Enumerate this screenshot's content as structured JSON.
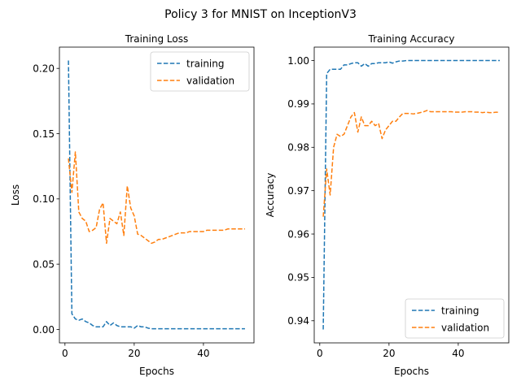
{
  "figure": {
    "title": "Policy 3 for MNIST on InceptionV3"
  },
  "colors": {
    "training": "#1f77b4",
    "validation": "#ff7f0e"
  },
  "chart_data": [
    {
      "type": "line",
      "title": "Training Loss",
      "xlabel": "Epochs",
      "ylabel": "Loss",
      "xlim": [
        -1.6,
        54.6
      ],
      "ylim": [
        -0.0103,
        0.2163
      ],
      "xticks": [
        0,
        20,
        40
      ],
      "yticks": [
        0.0,
        0.05,
        0.1,
        0.15,
        0.2
      ],
      "ytick_decimals": 2,
      "grid": false,
      "legend_position": "upper right",
      "series": [
        {
          "name": "training",
          "color": "#1f77b4",
          "x": [
            1,
            2,
            3,
            4,
            5,
            6,
            7,
            8,
            9,
            10,
            11,
            12,
            13,
            14,
            15,
            16,
            17,
            18,
            19,
            20,
            21,
            22,
            23,
            24,
            25,
            26,
            27,
            28,
            29,
            30,
            31,
            32,
            33,
            34,
            35,
            36,
            37,
            38,
            39,
            40,
            41,
            42,
            43,
            44,
            45,
            46,
            47,
            48,
            49,
            50,
            51,
            52
          ],
          "y": [
            0.206,
            0.012,
            0.008,
            0.007,
            0.008,
            0.006,
            0.005,
            0.003,
            0.002,
            0.002,
            0.002,
            0.006,
            0.003,
            0.005,
            0.003,
            0.002,
            0.002,
            0.002,
            0.002,
            0.001,
            0.003,
            0.002,
            0.002,
            0.001,
            0.0005,
            0.0005,
            0.0005,
            0.0005,
            0.0005,
            0.0005,
            0.0005,
            0.0005,
            0.0005,
            0.0005,
            0.0005,
            0.0005,
            0.0005,
            0.0005,
            0.0005,
            0.0005,
            0.0005,
            0.0005,
            0.0005,
            0.0005,
            0.0005,
            0.0005,
            0.0005,
            0.0005,
            0.0005,
            0.0005,
            0.0005,
            0.0005
          ]
        },
        {
          "name": "validation",
          "color": "#ff7f0e",
          "x": [
            1,
            2,
            3,
            4,
            5,
            6,
            7,
            8,
            9,
            10,
            11,
            12,
            13,
            14,
            15,
            16,
            17,
            18,
            19,
            20,
            21,
            22,
            23,
            24,
            25,
            26,
            27,
            28,
            29,
            30,
            31,
            32,
            33,
            34,
            35,
            36,
            37,
            38,
            39,
            40,
            41,
            42,
            43,
            44,
            45,
            46,
            47,
            48,
            49,
            50,
            51,
            52
          ],
          "y": [
            0.131,
            0.105,
            0.136,
            0.09,
            0.085,
            0.083,
            0.075,
            0.076,
            0.078,
            0.092,
            0.097,
            0.066,
            0.085,
            0.083,
            0.081,
            0.09,
            0.072,
            0.11,
            0.093,
            0.087,
            0.073,
            0.072,
            0.07,
            0.068,
            0.066,
            0.067,
            0.069,
            0.069,
            0.07,
            0.071,
            0.072,
            0.073,
            0.074,
            0.074,
            0.074,
            0.075,
            0.075,
            0.075,
            0.075,
            0.075,
            0.076,
            0.076,
            0.076,
            0.076,
            0.076,
            0.076,
            0.077,
            0.077,
            0.077,
            0.077,
            0.077,
            0.077
          ]
        }
      ]
    },
    {
      "type": "line",
      "title": "Training Accuracy",
      "xlabel": "Epochs",
      "ylabel": "Accuracy",
      "xlim": [
        -1.6,
        54.6
      ],
      "ylim": [
        0.9349,
        1.0031
      ],
      "xticks": [
        0,
        20,
        40
      ],
      "yticks": [
        0.94,
        0.95,
        0.96,
        0.97,
        0.98,
        0.99,
        1.0
      ],
      "ytick_decimals": 2,
      "grid": false,
      "legend_position": "lower right",
      "series": [
        {
          "name": "training",
          "color": "#1f77b4",
          "x": [
            1,
            2,
            3,
            4,
            5,
            6,
            7,
            8,
            9,
            10,
            11,
            12,
            13,
            14,
            15,
            16,
            17,
            18,
            19,
            20,
            21,
            22,
            23,
            24,
            25,
            26,
            27,
            28,
            29,
            30,
            31,
            32,
            33,
            34,
            35,
            36,
            37,
            38,
            39,
            40,
            41,
            42,
            43,
            44,
            45,
            46,
            47,
            48,
            49,
            50,
            51,
            52
          ],
          "y": [
            0.938,
            0.997,
            0.998,
            0.998,
            0.998,
            0.998,
            0.999,
            0.999,
            0.9993,
            0.9995,
            0.9995,
            0.9987,
            0.9993,
            0.9987,
            0.9993,
            0.9993,
            0.9995,
            0.9995,
            0.9995,
            0.9997,
            0.9994,
            0.9997,
            0.9999,
            0.9999,
            1.0,
            1.0,
            1.0,
            1.0,
            1.0,
            1.0,
            1.0,
            1.0,
            1.0,
            1.0,
            1.0,
            1.0,
            1.0,
            1.0,
            1.0,
            1.0,
            1.0,
            1.0,
            1.0,
            1.0,
            1.0,
            1.0,
            1.0,
            1.0,
            1.0,
            1.0,
            1.0,
            1.0
          ]
        },
        {
          "name": "validation",
          "color": "#ff7f0e",
          "x": [
            1,
            2,
            3,
            4,
            5,
            6,
            7,
            8,
            9,
            10,
            11,
            12,
            13,
            14,
            15,
            16,
            17,
            18,
            19,
            20,
            21,
            22,
            23,
            24,
            25,
            26,
            27,
            28,
            29,
            30,
            31,
            32,
            33,
            34,
            35,
            36,
            37,
            38,
            39,
            40,
            41,
            42,
            43,
            44,
            45,
            46,
            47,
            48,
            49,
            50,
            51,
            52
          ],
          "y": [
            0.964,
            0.975,
            0.969,
            0.98,
            0.983,
            0.9825,
            0.983,
            0.985,
            0.987,
            0.988,
            0.9835,
            0.987,
            0.985,
            0.985,
            0.986,
            0.985,
            0.9855,
            0.982,
            0.984,
            0.985,
            0.986,
            0.986,
            0.987,
            0.9878,
            0.9878,
            0.9878,
            0.9877,
            0.9878,
            0.988,
            0.9882,
            0.9885,
            0.9882,
            0.9882,
            0.9882,
            0.9882,
            0.9882,
            0.9882,
            0.9882,
            0.9881,
            0.9881,
            0.9881,
            0.9882,
            0.9882,
            0.9882,
            0.9881,
            0.9881,
            0.988,
            0.9881,
            0.988,
            0.988,
            0.9881,
            0.988
          ]
        }
      ]
    }
  ]
}
